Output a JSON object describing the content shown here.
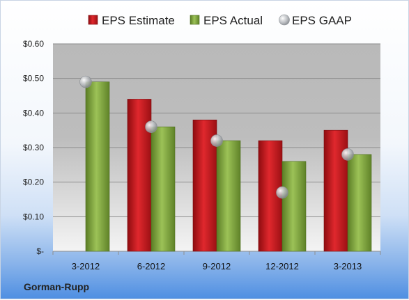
{
  "chart_data": {
    "type": "bar",
    "categories": [
      "3-2012",
      "6-2012",
      "9-2012",
      "12-2012",
      "3-2013"
    ],
    "series": [
      {
        "name": "EPS Estimate",
        "kind": "bar",
        "color": "#c0191e",
        "values": [
          null,
          0.44,
          0.38,
          0.32,
          0.35
        ]
      },
      {
        "name": "EPS Actual",
        "kind": "bar",
        "color": "#7fa43c",
        "values": [
          0.49,
          0.36,
          0.32,
          0.26,
          0.28
        ]
      },
      {
        "name": "EPS GAAP",
        "kind": "marker",
        "color": "#b9bcc0",
        "values": [
          0.49,
          0.36,
          0.32,
          0.17,
          0.28
        ]
      }
    ],
    "ylim": [
      0,
      0.6
    ],
    "y_ticks": [
      0,
      0.1,
      0.2,
      0.3,
      0.4,
      0.5,
      0.6
    ],
    "y_tick_labels": [
      "$-",
      "$0.10",
      "$0.20",
      "$0.30",
      "$0.40",
      "$0.50",
      "$0.60"
    ],
    "grid": true,
    "legend_position": "top",
    "footer_label": "Gorman-Rupp"
  }
}
